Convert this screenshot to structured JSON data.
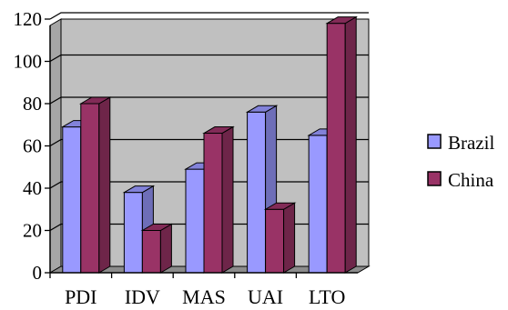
{
  "chart_data": {
    "type": "bar",
    "categories": [
      "PDI",
      "IDV",
      "MAS",
      "UAI",
      "LTO"
    ],
    "series": [
      {
        "name": "Brazil",
        "values": [
          69,
          38,
          49,
          76,
          65
        ],
        "color": "#9999ff"
      },
      {
        "name": "China",
        "values": [
          80,
          20,
          66,
          30,
          118
        ],
        "color": "#993366"
      }
    ],
    "ylim": [
      0,
      120
    ],
    "yticks": [
      0,
      20,
      40,
      60,
      80,
      100,
      120
    ],
    "grid": true,
    "legend": "right",
    "three_d": true,
    "plot_background": "#c0c0c0"
  }
}
